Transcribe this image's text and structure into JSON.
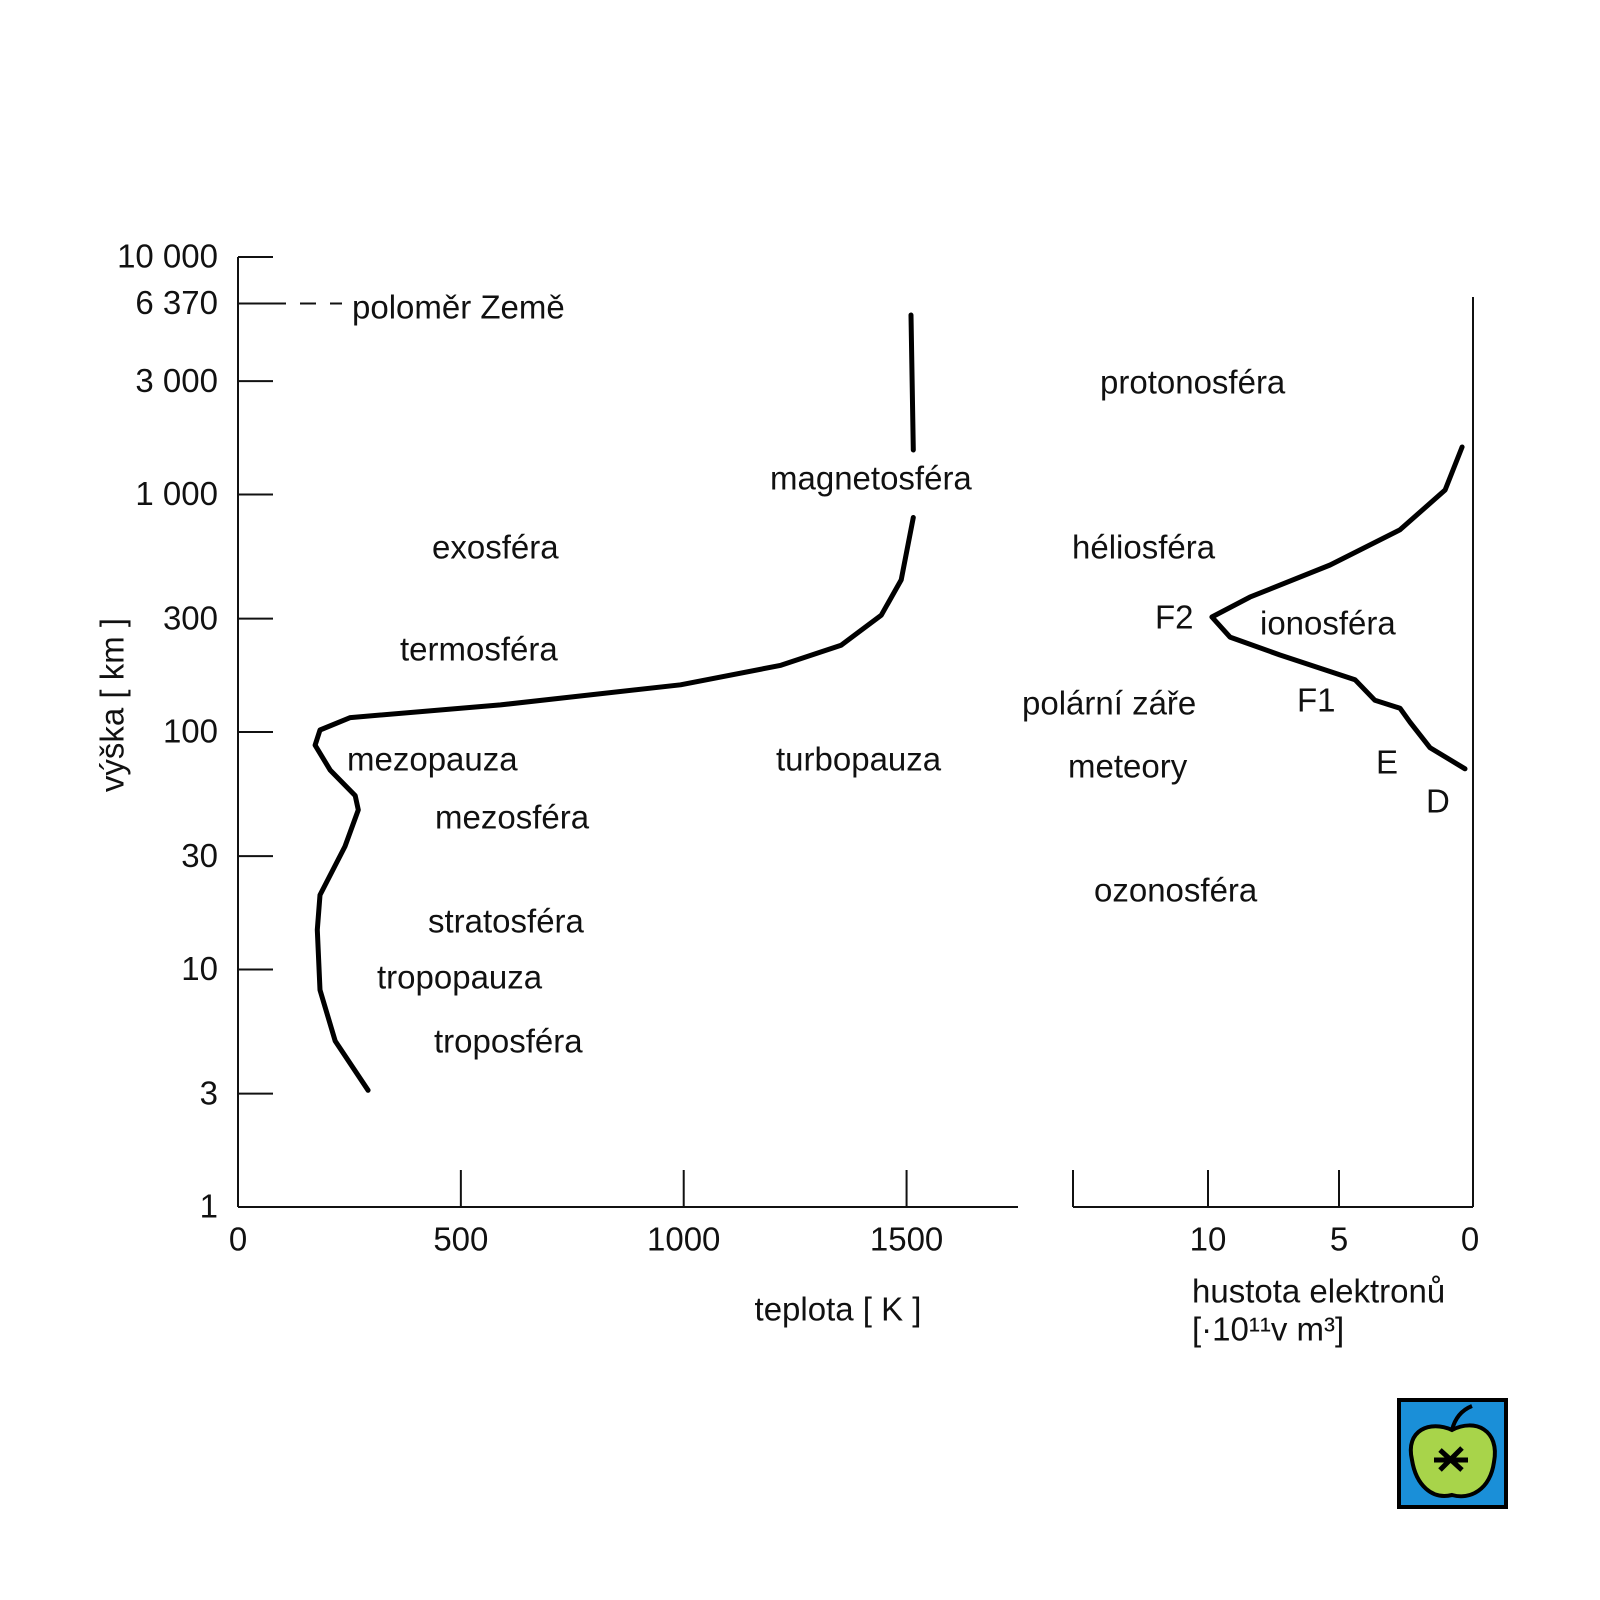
{
  "chart_data": [
    {
      "type": "line",
      "x_label": "teplota [ K ]",
      "y_label": "výška [ km ]",
      "xlim": [
        0,
        1750
      ],
      "xticks": [
        0,
        500,
        1000,
        1500
      ],
      "ylim": [
        1,
        10000
      ],
      "log_y": true,
      "yticks": [
        {
          "value": 10000,
          "label": "10 000"
        },
        {
          "value": 6370,
          "label": "6 370"
        },
        {
          "value": 3000,
          "label": "3 000"
        },
        {
          "value": 1000,
          "label": "1 000"
        },
        300,
        100,
        30,
        10,
        3,
        1
      ],
      "color": "#000000",
      "x": [
        1510,
        1515,
        null,
        1515,
        1488,
        1443,
        1353,
        1218,
        993,
        589,
        252,
        184,
        173,
        207,
        263,
        270,
        240,
        184,
        178,
        184,
        218,
        292
      ],
      "values": [
        5700,
        1540,
        null,
        800,
        437,
        310,
        232,
        191,
        158,
        130,
        115,
        102,
        88,
        69,
        54,
        47,
        33,
        20.6,
        14.7,
        8.2,
        5.0,
        3.1
      ],
      "annotations": [
        "poloměr Země",
        "magnetosféra",
        "exosféra",
        "termosféra",
        "mezopauza",
        "turbopauza",
        "mezosféra",
        "stratosféra",
        "tropopauza",
        "troposféra"
      ]
    },
    {
      "type": "line",
      "x_label": [
        "hustota elektronů",
        "[·10¹¹v m³]"
      ],
      "xlim": [
        15,
        0
      ],
      "xticks": [
        10,
        5,
        0
      ],
      "ylim": [
        1,
        10000
      ],
      "log_y": true,
      "color": "#000000",
      "x": [
        0.3,
        0.95,
        2.67,
        5.34,
        8.4,
        9.85,
        9.16,
        7.25,
        4.39,
        3.63,
        2.67,
        2.29,
        1.53,
        0.19
      ],
      "values": [
        1585,
        1045,
        710,
        505,
        370,
        305,
        251,
        211,
        166,
        136,
        126,
        110,
        86,
        70
      ],
      "annotations": [
        "protonosféra",
        "héliosféra",
        "F2",
        "ionosféra",
        "polární záře",
        "F1",
        "meteory",
        "E",
        "D",
        "ozonosféra"
      ]
    }
  ]
}
